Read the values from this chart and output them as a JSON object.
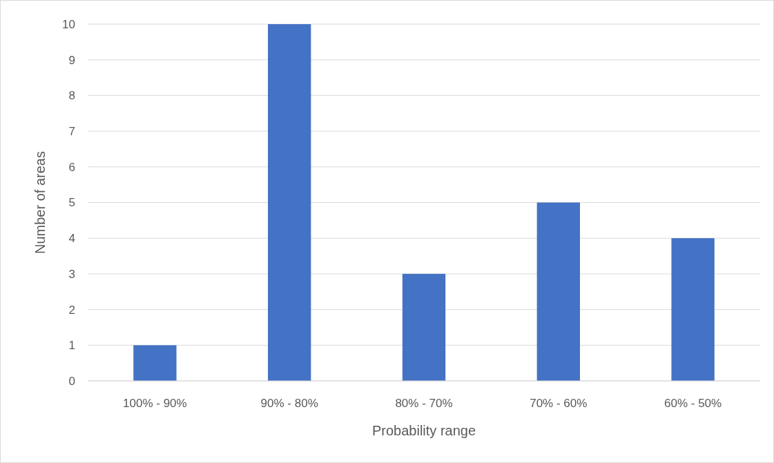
{
  "chart_data": {
    "type": "bar",
    "xlabel": "Probability range",
    "ylabel": "Number of areas",
    "categories": [
      "100% - 90%",
      "90% - 80%",
      "80% - 70%",
      "70% - 60%",
      "60% - 50%"
    ],
    "values": [
      1,
      10,
      3,
      5,
      4
    ],
    "color": "#4472c4",
    "ylim": [
      0,
      10
    ],
    "yticks": [
      0,
      1,
      2,
      3,
      4,
      5,
      6,
      7,
      8,
      9,
      10
    ],
    "grid": "y"
  }
}
